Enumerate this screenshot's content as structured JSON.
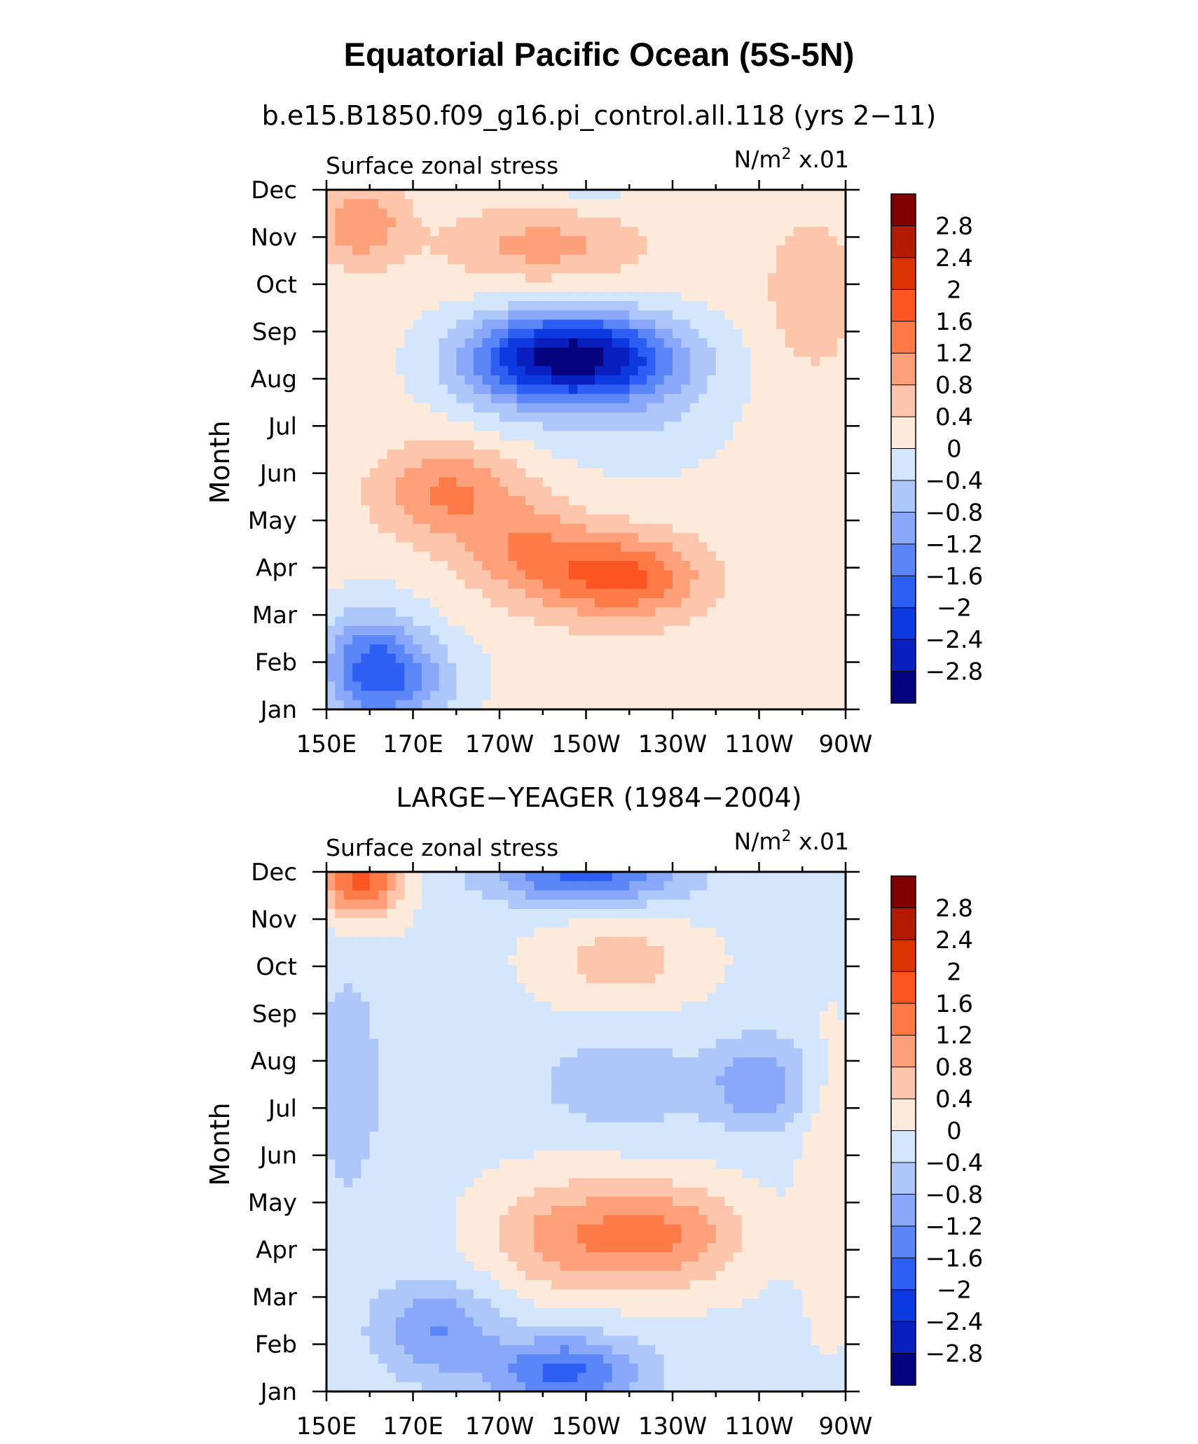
{
  "figure": {
    "title": "Equatorial Pacific Ocean (5S-5N)"
  },
  "colorbar": {
    "labels": [
      "2.8",
      "2.4",
      "2",
      "1.6",
      "1.2",
      "0.8",
      "0.4",
      "0",
      "−0.4",
      "−0.8",
      "−1.2",
      "−1.6",
      "−2",
      "−2.4",
      "−2.8"
    ],
    "colors": [
      "#800000",
      "#b31b00",
      "#dd3300",
      "#fd5522",
      "#fe7a46",
      "#fea07a",
      "#fdc5aa",
      "#feeadb",
      "#d3e6fc",
      "#adc7fb",
      "#89a8f9",
      "#5b86f7",
      "#2d5ff5",
      "#0c3ae0",
      "#0a1fbf",
      "#05047e"
    ]
  },
  "chart_data": [
    {
      "type": "heatmap",
      "title": "b.e15.B1850.f09_g16.pi_control.all.118 (yrs 2−11)",
      "left_label": "Surface zonal stress",
      "right_label_prefix": "N/m",
      "right_label_sup": "2",
      "right_label_suffix": " x.01",
      "ylabel": "Month",
      "x_ticks": [
        "150E",
        "170E",
        "170W",
        "150W",
        "130W",
        "110W",
        "90W"
      ],
      "x_range_deg_east": [
        150,
        270
      ],
      "y_ticks": [
        "Jan",
        "Feb",
        "Mar",
        "Apr",
        "May",
        "Jun",
        "Jul",
        "Aug",
        "Sep",
        "Oct",
        "Nov",
        "Dec"
      ],
      "value_units": "N/m2 x.01",
      "field_features": [
        {
          "lon": 209,
          "month": 7.5,
          "value": -2.6,
          "spread_lon": 22,
          "spread_month": 0.9
        },
        {
          "lon": 194,
          "month": 7.2,
          "value": -0.9,
          "spread_lon": 18,
          "spread_month": 1.2
        },
        {
          "lon": 222,
          "month": 6.5,
          "value": -0.6,
          "spread_lon": 20,
          "spread_month": 1.4
        },
        {
          "lon": 178,
          "month": 4.6,
          "value": 1.1,
          "spread_lon": 16,
          "spread_month": 1.0
        },
        {
          "lon": 218,
          "month": 2.8,
          "value": 1.6,
          "spread_lon": 18,
          "spread_month": 0.9
        },
        {
          "lon": 196,
          "month": 3.4,
          "value": 0.9,
          "spread_lon": 14,
          "spread_month": 1.0
        },
        {
          "lon": 160,
          "month": 0.9,
          "value": -1.6,
          "spread_lon": 12,
          "spread_month": 1.2
        },
        {
          "lon": 170,
          "month": 0.6,
          "value": -0.8,
          "spread_lon": 14,
          "spread_month": 1.0
        },
        {
          "lon": 158,
          "month": 10.3,
          "value": 1.0,
          "spread_lon": 10,
          "spread_month": 0.9
        },
        {
          "lon": 200,
          "month": 9.8,
          "value": 0.8,
          "spread_lon": 22,
          "spread_month": 0.8
        },
        {
          "lon": 262,
          "month": 8.8,
          "value": 0.6,
          "spread_lon": 10,
          "spread_month": 1.6
        },
        {
          "lon": 210,
          "month": 11.0,
          "value": -0.3,
          "spread_lon": 14,
          "spread_month": 0.4
        }
      ],
      "field_background": 0.15
    },
    {
      "type": "heatmap",
      "title": "LARGE−YEAGER (1984−2004)",
      "left_label": "Surface zonal stress",
      "right_label_prefix": "N/m",
      "right_label_sup": "2",
      "right_label_suffix": " x.01",
      "ylabel": "Month",
      "x_ticks": [
        "150E",
        "170E",
        "170W",
        "150W",
        "130W",
        "110W",
        "90W"
      ],
      "x_range_deg_east": [
        150,
        270
      ],
      "y_ticks": [
        "Jan",
        "Feb",
        "Mar",
        "Apr",
        "May",
        "Jun",
        "Jul",
        "Aug",
        "Sep",
        "Oct",
        "Nov",
        "Dec"
      ],
      "value_units": "N/m2 x.01",
      "field_features": [
        {
          "lon": 158,
          "month": 10.8,
          "value": 1.9,
          "spread_lon": 9,
          "spread_month": 0.8
        },
        {
          "lon": 218,
          "month": 9.1,
          "value": 0.7,
          "spread_lon": 18,
          "spread_month": 0.9
        },
        {
          "lon": 226,
          "month": 3.3,
          "value": 1.4,
          "spread_lon": 20,
          "spread_month": 1.1
        },
        {
          "lon": 202,
          "month": 3.3,
          "value": 0.8,
          "spread_lon": 16,
          "spread_month": 1.2
        },
        {
          "lon": 210,
          "month": 10.9,
          "value": -1.6,
          "spread_lon": 22,
          "spread_month": 0.6
        },
        {
          "lon": 250,
          "month": 6.5,
          "value": -1.0,
          "spread_lon": 12,
          "spread_month": 1.0
        },
        {
          "lon": 218,
          "month": 6.5,
          "value": -0.7,
          "spread_lon": 18,
          "spread_month": 0.9
        },
        {
          "lon": 175,
          "month": 1.3,
          "value": -1.1,
          "spread_lon": 14,
          "spread_month": 1.0
        },
        {
          "lon": 205,
          "month": 0.4,
          "value": -1.6,
          "spread_lon": 18,
          "spread_month": 0.8
        },
        {
          "lon": 155,
          "month": 6.5,
          "value": -0.6,
          "spread_lon": 8,
          "spread_month": 2.5
        },
        {
          "lon": 266,
          "month": 4.5,
          "value": 0.5,
          "spread_lon": 6,
          "spread_month": 3.0
        }
      ],
      "field_background": -0.1
    }
  ]
}
